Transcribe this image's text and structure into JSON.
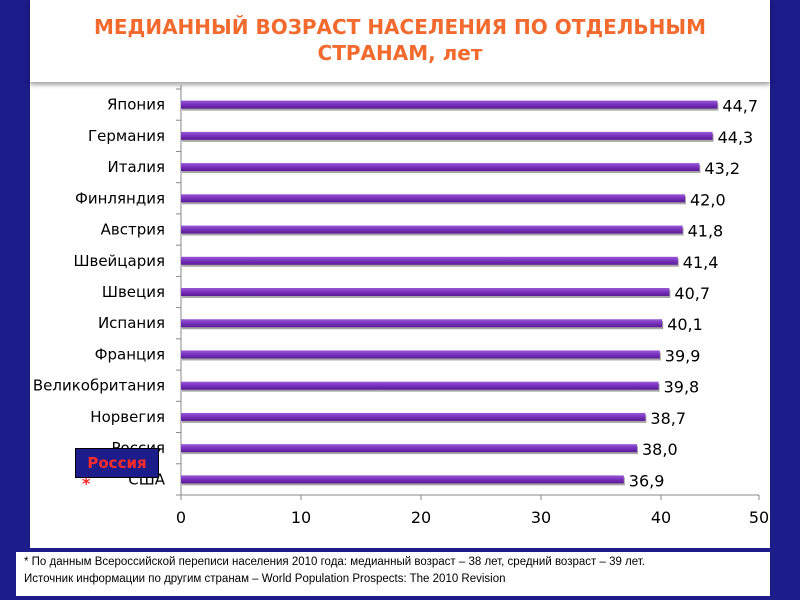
{
  "title": {
    "line1": "МЕДИАННЫЙ ВОЗРАСТ НАСЕЛЕНИЯ ПО ОТДЕЛЬНЫМ",
    "line2": "СТРАНАМ, лет"
  },
  "russia_badge": {
    "label": "Россия",
    "star": "*"
  },
  "footnote": {
    "line1": "* По данным Всероссийской переписи населения 2010 года: медианный возраст – 38 лет, средний возраст – 39 лет.",
    "line2": "Источник информации по другим странам – World Population Prospects: The 2010 Revision"
  },
  "colors": {
    "frame": "#1c1c8a",
    "title": "#f26a2e",
    "bar_light": "#9a5ad6",
    "bar_dark": "#5a1a96",
    "badge_text": "#ff2a2a"
  },
  "chart_data": {
    "type": "bar",
    "orientation": "horizontal",
    "title": "МЕДИАННЫЙ ВОЗРАСТ НАСЕЛЕНИЯ ПО ОТДЕЛЬНЫМ СТРАНАМ, лет",
    "categories": [
      "Япония",
      "Германия",
      "Италия",
      "Финляндия",
      "Австрия",
      "Швейцария",
      "Швеция",
      "Испания",
      "Франция",
      "Великобритания",
      "Норвегия",
      "Россия",
      "США"
    ],
    "values": [
      44.7,
      44.3,
      43.2,
      42.0,
      41.8,
      41.4,
      40.7,
      40.1,
      39.9,
      39.8,
      38.7,
      38.0,
      36.9
    ],
    "value_labels": [
      "44,7",
      "44,3",
      "43,2",
      "42,0",
      "41,8",
      "41,4",
      "40,7",
      "40,1",
      "39,9",
      "39,8",
      "38,7",
      "38,0",
      "36,9"
    ],
    "xlim": [
      0,
      50
    ],
    "xticks": [
      0,
      10,
      20,
      30,
      40,
      50
    ],
    "xlabel": "",
    "ylabel": "",
    "grid": false,
    "legend": "none"
  }
}
